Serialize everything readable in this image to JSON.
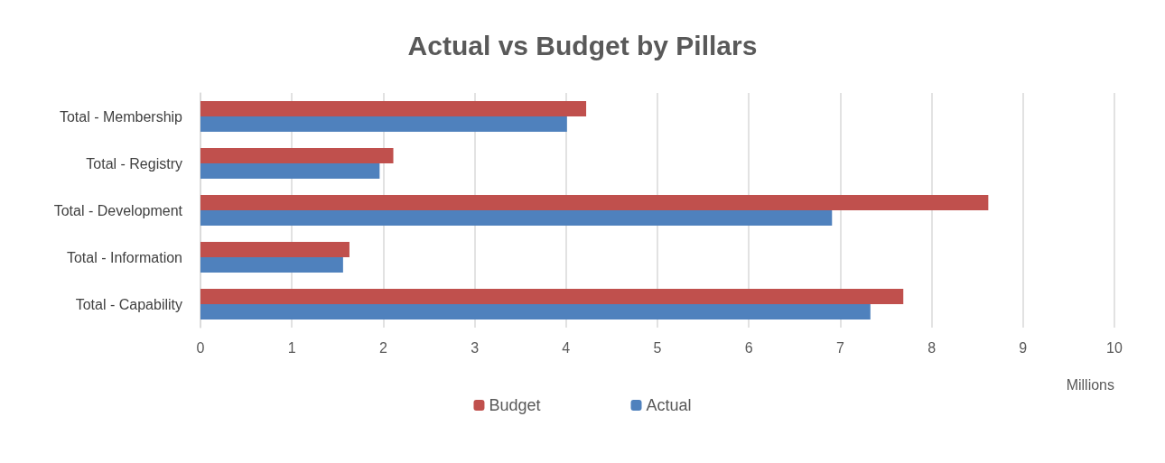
{
  "chart_data": {
    "type": "bar",
    "orientation": "horizontal",
    "title": "Actual vs Budget by Pillars",
    "xlabel": "Millions",
    "categories": [
      "Total - Membership",
      "Total - Registry",
      "Total - Development",
      "Total - Information",
      "Total - Capability"
    ],
    "series": [
      {
        "name": "Budget",
        "color": "#c0504d",
        "values": [
          4.22,
          2.11,
          8.62,
          1.63,
          7.69
        ]
      },
      {
        "name": "Actual",
        "color": "#4f81bd",
        "values": [
          4.01,
          1.96,
          6.91,
          1.56,
          7.33
        ]
      }
    ],
    "xlim": [
      0,
      10
    ],
    "xticks": [
      0,
      1,
      2,
      3,
      4,
      5,
      6,
      7,
      8,
      9,
      10
    ],
    "grid": "x",
    "legend": "bottom"
  }
}
